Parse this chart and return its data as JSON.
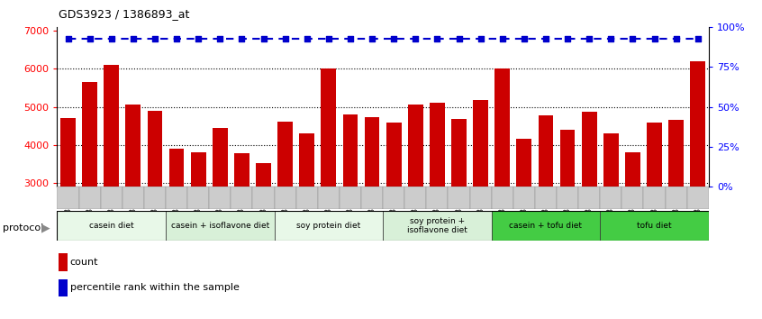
{
  "title": "GDS3923 / 1386893_at",
  "samples": [
    "GSM586045",
    "GSM586046",
    "GSM586047",
    "GSM586048",
    "GSM586049",
    "GSM586050",
    "GSM586051",
    "GSM586052",
    "GSM586053",
    "GSM586054",
    "GSM586055",
    "GSM586056",
    "GSM586057",
    "GSM586058",
    "GSM586059",
    "GSM586060",
    "GSM586061",
    "GSM586062",
    "GSM586063",
    "GSM586064",
    "GSM586065",
    "GSM586066",
    "GSM586067",
    "GSM586068",
    "GSM586069",
    "GSM586070",
    "GSM586071",
    "GSM586072",
    "GSM586073",
    "GSM586074"
  ],
  "counts": [
    4700,
    5650,
    6100,
    5050,
    4900,
    3900,
    3800,
    4450,
    3780,
    3520,
    4620,
    4300,
    6000,
    4800,
    4720,
    4580,
    5050,
    5120,
    4680,
    5180,
    6000,
    4150,
    4770,
    4400,
    4880,
    4300,
    3800,
    4580,
    4650,
    6200
  ],
  "percentile_value": 6800,
  "bar_color": "#cc0000",
  "dot_color": "#0000cc",
  "ylim_left": [
    2900,
    7100
  ],
  "ylim_right": [
    0,
    100
  ],
  "yticks_left": [
    3000,
    4000,
    5000,
    6000,
    7000
  ],
  "yticks_right": [
    0,
    25,
    50,
    75,
    100
  ],
  "protocols": [
    {
      "label": "casein diet",
      "start": 0,
      "end": 5,
      "color": "#e8f8e8"
    },
    {
      "label": "casein + isoflavone diet",
      "start": 5,
      "end": 10,
      "color": "#d8f0d8"
    },
    {
      "label": "soy protein diet",
      "start": 10,
      "end": 15,
      "color": "#e8f8e8"
    },
    {
      "label": "soy protein +\nisoflavone diet",
      "start": 15,
      "end": 20,
      "color": "#d8f0d8"
    },
    {
      "label": "casein + tofu diet",
      "start": 20,
      "end": 25,
      "color": "#44cc44"
    },
    {
      "label": "tofu diet",
      "start": 25,
      "end": 30,
      "color": "#44cc44"
    }
  ],
  "protocol_label": "protocol",
  "legend_count_label": "count",
  "legend_percentile_label": "percentile rank within the sample",
  "bg_color": "#ffffff",
  "chart_bg": "#ffffff",
  "xticklabel_bg": "#dddddd"
}
